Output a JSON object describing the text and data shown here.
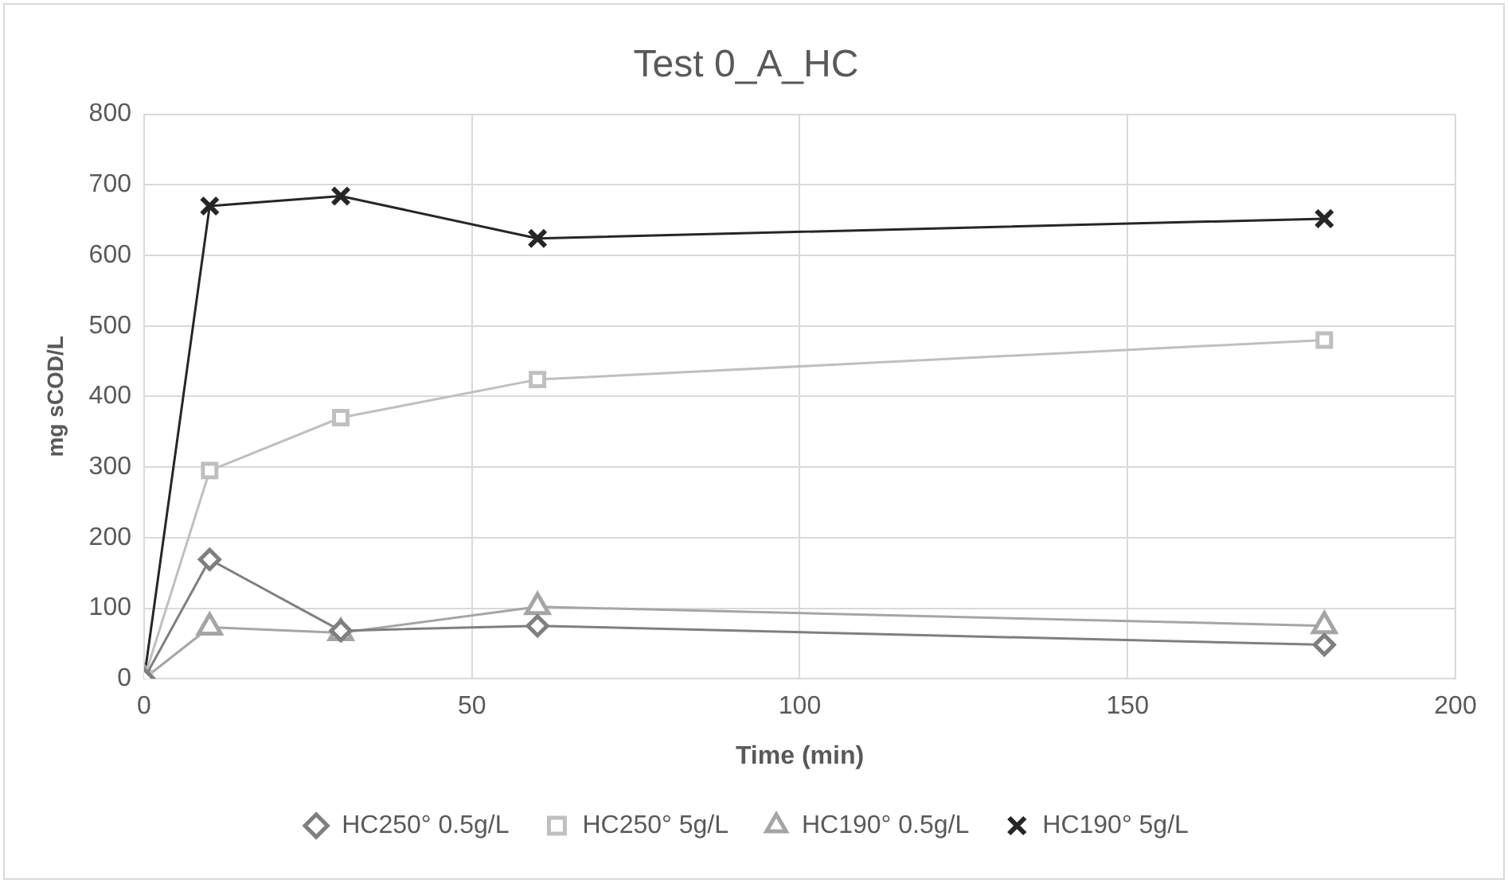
{
  "chart_data": {
    "type": "line",
    "title": "Test 0_A_HC",
    "xlabel": "Time (min)",
    "ylabel": "mg sCOD/L",
    "x": [
      0,
      10,
      30,
      60,
      180
    ],
    "series": [
      {
        "name": "HC250° 0.5g/L",
        "color": "#7f7f7f",
        "marker": "diamond",
        "values": [
          0,
          169,
          68,
          75,
          48
        ]
      },
      {
        "name": "HC250° 5g/L",
        "color": "#bfbfbf",
        "marker": "square",
        "values": [
          0,
          295,
          370,
          424,
          480
        ]
      },
      {
        "name": "HC190° 0.5g/L",
        "color": "#a5a5a5",
        "marker": "triangle",
        "values": [
          0,
          73,
          65,
          102,
          75
        ]
      },
      {
        "name": "HC190° 5g/L",
        "color": "#262626",
        "marker": "cross",
        "values": [
          0,
          670,
          684,
          624,
          652
        ]
      }
    ],
    "xlim": [
      0,
      200
    ],
    "xticks": [
      0,
      50,
      100,
      150,
      200
    ],
    "ylim": [
      0,
      800
    ],
    "yticks": [
      0,
      100,
      200,
      300,
      400,
      500,
      600,
      700,
      800
    ],
    "grid": true,
    "legend": "bottom",
    "line_style": "solid"
  }
}
